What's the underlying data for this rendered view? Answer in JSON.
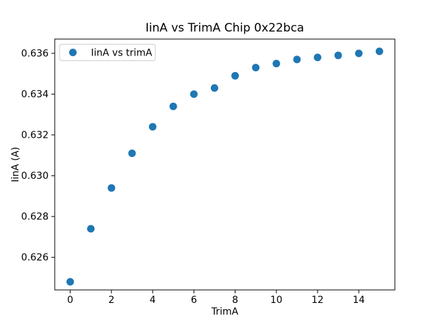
{
  "figure": {
    "background_color": "#ffffff",
    "spine_color": "#000000",
    "tick_color": "#000000"
  },
  "chart_data": {
    "type": "scatter",
    "title": "IinA vs TrimA Chip 0x22bca",
    "xlabel": "TrimA",
    "ylabel": "IinA (A)",
    "legend_label": "IinA vs trimA",
    "legend_position": "upper left",
    "grid": false,
    "marker": "circle",
    "marker_color": "#1f77b4",
    "legend_border_color": "#cccccc",
    "x": [
      0,
      1,
      2,
      3,
      4,
      5,
      6,
      7,
      8,
      9,
      10,
      11,
      12,
      13,
      14,
      15
    ],
    "y": [
      0.6248,
      0.6274,
      0.6294,
      0.6311,
      0.6324,
      0.6334,
      0.634,
      0.6343,
      0.6349,
      0.6353,
      0.6355,
      0.6357,
      0.6358,
      0.6359,
      0.636,
      0.6361
    ],
    "xlim": [
      -0.75,
      15.75
    ],
    "ylim": [
      0.6244,
      0.6367
    ],
    "xticks": [
      0,
      2,
      4,
      6,
      8,
      10,
      12,
      14
    ],
    "ytick_labels": [
      "0.626",
      "0.628",
      "0.630",
      "0.632",
      "0.634",
      "0.636"
    ],
    "ytick_values": [
      0.626,
      0.628,
      0.63,
      0.632,
      0.634,
      0.636
    ]
  }
}
